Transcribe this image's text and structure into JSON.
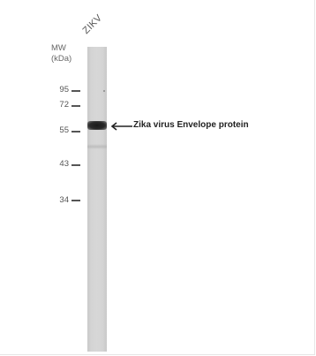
{
  "figure": {
    "mw_label_line1": "MW",
    "mw_label_line2": "(kDa)",
    "lane_label": "ZIKV",
    "markers": [
      "95",
      "72",
      "55",
      "43",
      "34"
    ],
    "annotation": "Zika virus Envelope protein"
  }
}
